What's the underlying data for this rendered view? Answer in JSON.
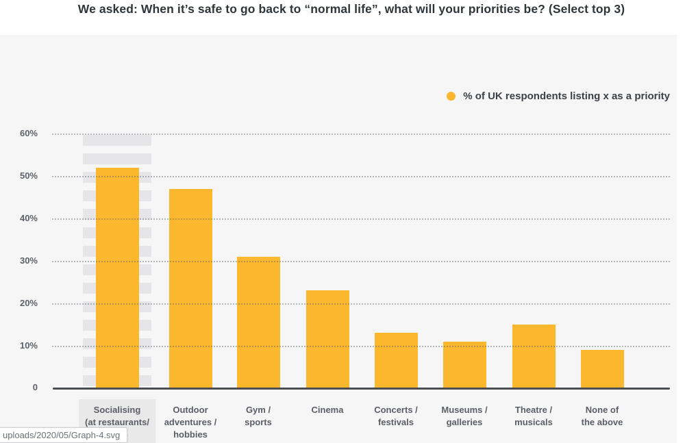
{
  "title": "We asked: When it’s safe to go back to “normal life”, what will your priorities be? (Select top 3)",
  "legend": {
    "label": "% of UK respondents listing x as a priority"
  },
  "status_bar": {
    "text": "uploads/2020/05/Graph-4.svg"
  },
  "colors": {
    "bar": "#fbb72e",
    "panel_background": "#f6f6f7",
    "highlight_stripe": "#e6e6e8",
    "axis": "#4a4e53",
    "title_text": "#30353a",
    "tick_text": "#5d6166"
  },
  "chart_data": {
    "type": "bar",
    "title": "We asked: When it’s safe to go back to “normal life”, what will your priorities be? (Select top 3)",
    "legend_entries": [
      "% of UK respondents listing x as a priority"
    ],
    "legend_position": "top-right",
    "categories": [
      "Socialising\n(at restaurants/\nbars)",
      "Outdoor\nadventures /\nhobbies",
      "Gym /\nsports",
      "Cinema",
      "Concerts /\nfestivals",
      "Museums /\ngalleries",
      "Theatre /\nmusicals",
      "None of\nthe above"
    ],
    "values": [
      52,
      47,
      31,
      23,
      13,
      11,
      15,
      9
    ],
    "unit": "%",
    "ylabel": "",
    "xlabel": "",
    "ylim": [
      0,
      60
    ],
    "y_tick_labels": [
      "60%",
      "50%",
      "40%",
      "30%",
      "20%",
      "10%"
    ],
    "y_tick_values": [
      60,
      50,
      40,
      30,
      20,
      10
    ],
    "zero_label": "0",
    "grid": "horizontal-dotted",
    "highlighted_category_index": 0
  }
}
